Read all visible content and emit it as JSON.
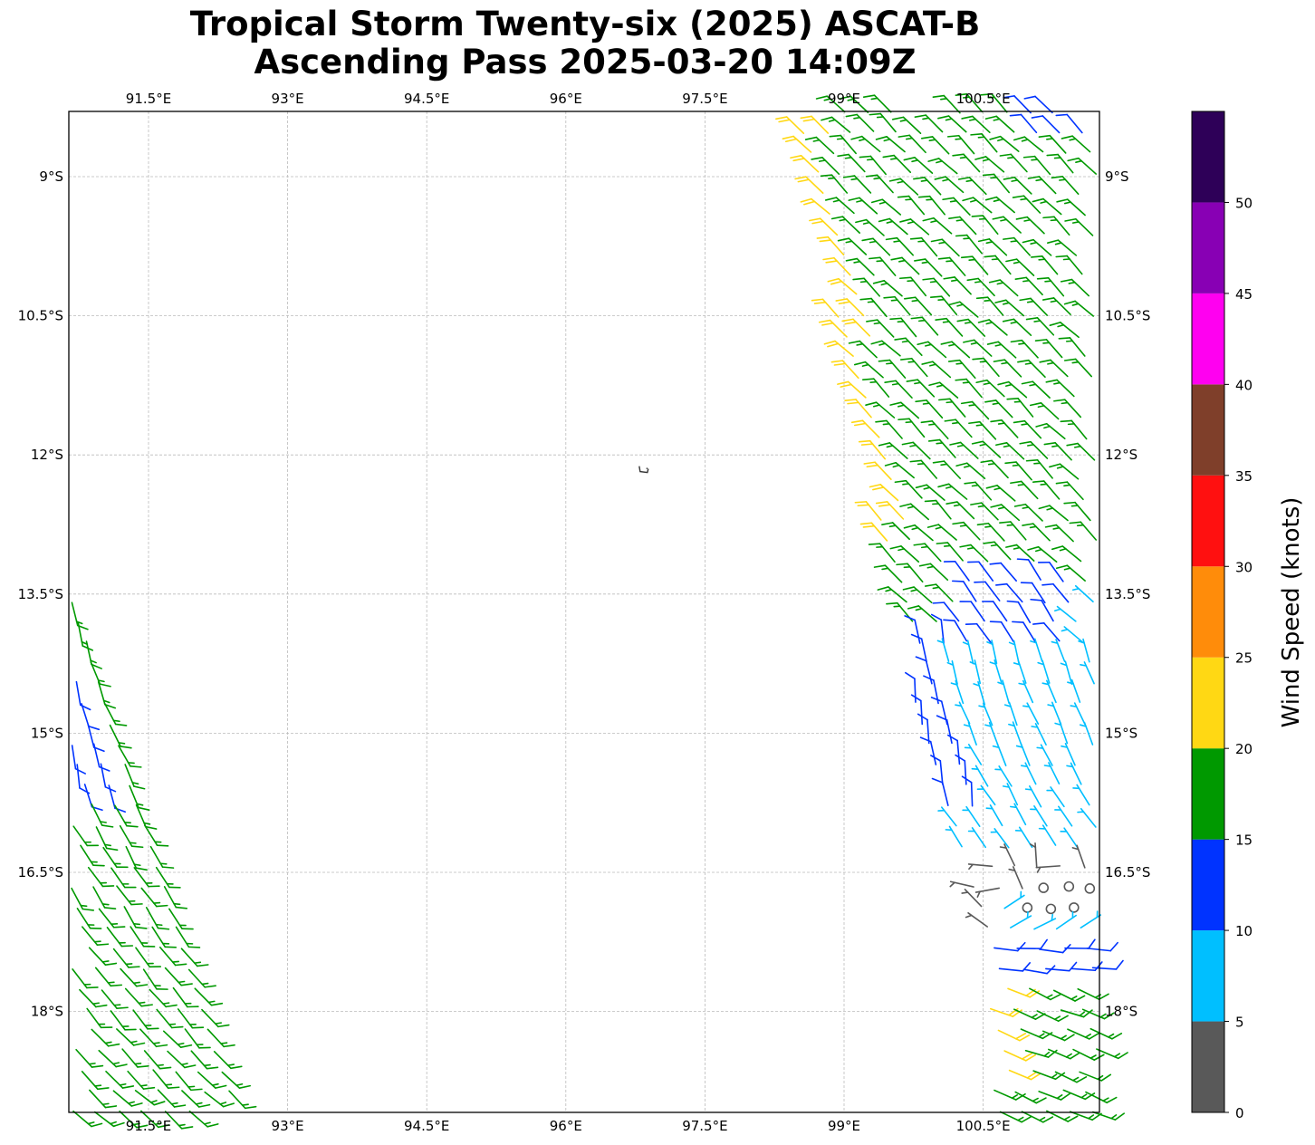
{
  "title": {
    "line1": "Tropical Storm Twenty-six (2025) ASCAT-B",
    "line2": "Ascending Pass 2025-03-20 14:09Z"
  },
  "chart_data": {
    "type": "wind_barb_map",
    "extent": {
      "lon": [
        90.64,
        101.73
      ],
      "lat_south": [
        8.3,
        19.06
      ]
    },
    "lon_ticks": [
      91.5,
      93,
      94.5,
      96,
      97.5,
      99,
      100.5
    ],
    "lon_tick_labels": [
      "91.5°E",
      "93°E",
      "94.5°E",
      "96°E",
      "97.5°E",
      "99°E",
      "100.5°E"
    ],
    "lat_ticks": [
      9,
      10.5,
      12,
      13.5,
      15,
      16.5,
      18
    ],
    "lat_tick_labels": [
      "9°S",
      "10.5°S",
      "12°S",
      "13.5°S",
      "15°S",
      "16.5°S",
      "18°S"
    ],
    "grid": true,
    "colorbar": {
      "label": "Wind Speed (knots)",
      "ticks": [
        0,
        5,
        10,
        15,
        20,
        25,
        30,
        35,
        40,
        45,
        50
      ],
      "range": [
        0,
        55
      ],
      "bins": [
        {
          "min": 0,
          "max": 5,
          "color": "#595959"
        },
        {
          "min": 5,
          "max": 10,
          "color": "#00bfff"
        },
        {
          "min": 10,
          "max": 15,
          "color": "#0033ff"
        },
        {
          "min": 15,
          "max": 20,
          "color": "#009900"
        },
        {
          "min": 20,
          "max": 25,
          "color": "#ffd814"
        },
        {
          "min": 25,
          "max": 30,
          "color": "#ff8c0a"
        },
        {
          "min": 30,
          "max": 35,
          "color": "#ff1010"
        },
        {
          "min": 35,
          "max": 40,
          "color": "#7f3f2a"
        },
        {
          "min": 40,
          "max": 45,
          "color": "#ff00f0"
        },
        {
          "min": 45,
          "max": 50,
          "color": "#8800b4"
        },
        {
          "min": 50,
          "max": 55,
          "color": "#2e0058"
        }
      ]
    },
    "island": {
      "name": "Cocos (Keeling) Islands",
      "lon": 96.84,
      "lat_south": 12.16
    },
    "swaths": [
      {
        "name": "east-swath",
        "edge_side": "left",
        "inner_edge": [
          [
            8.3,
            98.52
          ],
          [
            16.2,
            100.06
          ],
          [
            16.25,
            100.38
          ],
          [
            17.25,
            100.4
          ],
          [
            17.3,
            100.5
          ],
          [
            19.1,
            100.6
          ]
        ],
        "outer_lon": 101.72,
        "zones": [
          {
            "lat": [
              8.3,
              8.65
            ],
            "lon": [
              101.0,
              102
            ],
            "speed": 12,
            "dir": 315
          },
          {
            "lat": [
              8.3,
              13.1
            ],
            "band": [
              0,
              0.28
            ],
            "speed": 22,
            "dir": 315
          },
          {
            "lat": [
              13.3,
              14.1
            ],
            "lon": [
              100.25,
              101.45
            ],
            "speed": 12,
            "dir": 325
          },
          {
            "lat": [
              13.5,
              14.1
            ],
            "lon": [
              101.45,
              102
            ],
            "speed": 7,
            "dir": 310
          },
          {
            "lat": [
              13.9,
              15.9
            ],
            "band": [
              0,
              0.45
            ],
            "speed": 12,
            "dir": 352
          },
          {
            "lat": [
              14.1,
              16.25
            ],
            "speed": 7,
            "dir": [
              345,
              325
            ]
          },
          {
            "lat": [
              16.6,
              17.0
            ],
            "lon": [
              100.95,
              102
            ],
            "speed": 0,
            "dir": 0
          },
          {
            "lat": [
              16.85,
              17.25
            ],
            "lon": [
              100.6,
              102
            ],
            "speed": 7,
            "dir": 60
          },
          {
            "lat": [
              16.25,
              17.25
            ],
            "speed": 3,
            "dir": 330
          },
          {
            "lat": [
              17.25,
              17.6
            ],
            "speed": 12,
            "dir": 95
          },
          {
            "lat": [
              17.75,
              18.65
            ],
            "lon": [
              100.0,
              100.8
            ],
            "speed": 22,
            "dir": 112
          },
          {
            "lat": [
              17.6,
              19.1
            ],
            "speed": 17,
            "dir": 112
          },
          {
            "lat": [
              8.3,
              19.1
            ],
            "speed": 17,
            "dir": 315
          }
        ]
      },
      {
        "name": "west-swath",
        "edge_side": "right",
        "inner_edge": [
          [
            12.7,
            90.62
          ],
          [
            19.1,
            92.62
          ]
        ],
        "outer_lon": 90.66,
        "zones": [
          {
            "lat": [
              12.7,
              15.6
            ],
            "band": [
              0.22,
              5
            ],
            "speed": 12,
            "dir": 168
          },
          {
            "lat": [
              15.5,
              15.85
            ],
            "band": [
              0,
              0.16
            ],
            "speed": 22,
            "dir": 160
          },
          {
            "lat": [
              12.7,
              19.1
            ],
            "speed": 17,
            "dir": [
              170,
              132
            ]
          }
        ]
      }
    ]
  }
}
